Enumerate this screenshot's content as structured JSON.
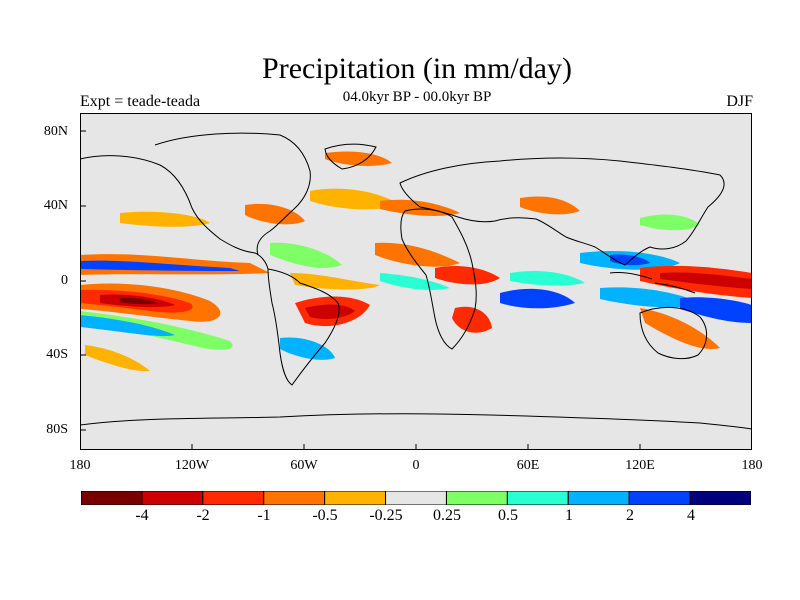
{
  "title": "Precipitation (in mm/day)",
  "subtitle": "04.0kyr BP - 00.0kyr BP",
  "left_label": "Expt = teade-teada",
  "right_label": "DJF",
  "lat_labels": [
    "80N",
    "40N",
    "0",
    "40S",
    "80S"
  ],
  "lon_labels": [
    "180",
    "120W",
    "60W",
    "0",
    "60E",
    "120E",
    "180"
  ],
  "colorbar": {
    "labels": [
      "-4",
      "-2",
      "-1",
      "-0.5",
      "-0.25",
      "0.25",
      "0.5",
      "1",
      "2",
      "4"
    ],
    "colors": [
      "#7a0000",
      "#cc0000",
      "#ff2a00",
      "#ff7400",
      "#ffb300",
      "#e6e6e6",
      "#7fff66",
      "#2affd4",
      "#00b2ff",
      "#0042ff",
      "#00007f"
    ]
  },
  "colors": {
    "background": "#e6e6e6",
    "coast": "#000000"
  }
}
